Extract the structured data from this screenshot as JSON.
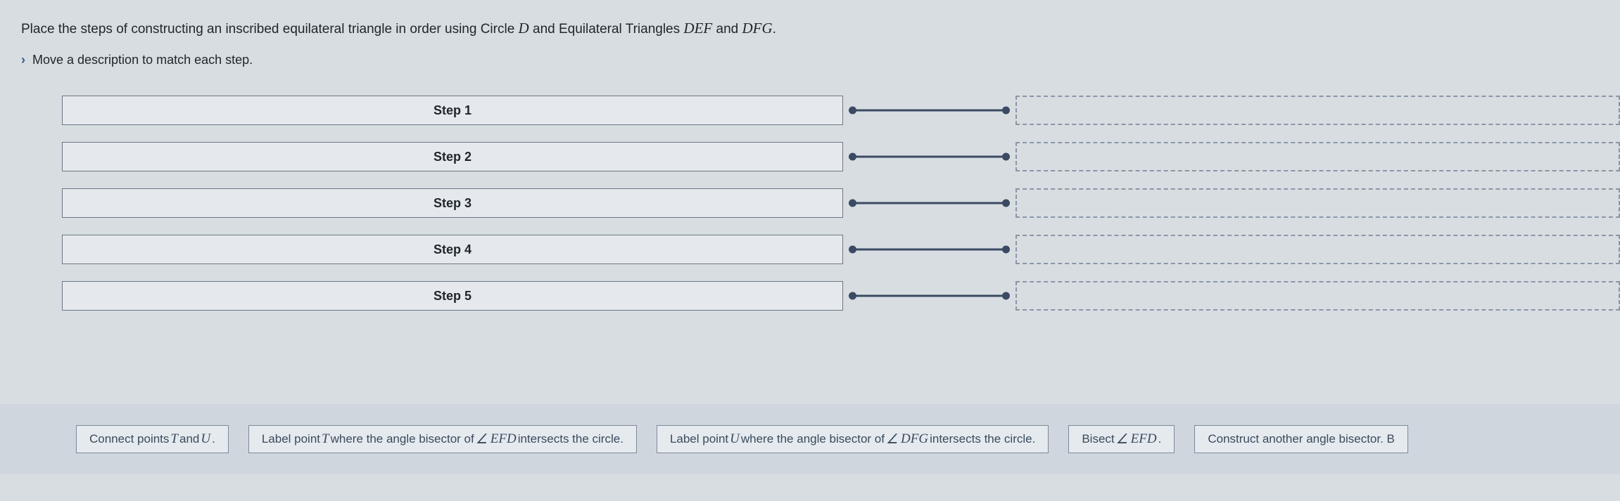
{
  "prompt": {
    "prefix": "Place the steps of constructing an inscribed equilateral triangle in order using Circle ",
    "var1": "D",
    "mid1": " and Equilateral Triangles ",
    "var2": "DEF",
    "mid2": " and ",
    "var3": "DFG",
    "suffix": "."
  },
  "instruction": "Move a description to match each step.",
  "steps": [
    {
      "label": "Step 1"
    },
    {
      "label": "Step 2"
    },
    {
      "label": "Step 3"
    },
    {
      "label": "Step 4"
    },
    {
      "label": "Step 5"
    }
  ],
  "chips": {
    "c1": {
      "t1": "Connect points ",
      "v1": "T",
      "t2": " and ",
      "v2": "U",
      "t3": "."
    },
    "c2": {
      "t1": "Label point ",
      "v1": "T",
      "t2": " where the angle bisector of ",
      "ang": "∠",
      "v2": "EFD",
      "t3": " intersects the circle."
    },
    "c3": {
      "t1": "Label point ",
      "v1": "U",
      "t2": " where the angle bisector of ",
      "ang": "∠",
      "v2": "DFG",
      "t3": " intersects the circle."
    },
    "c4": {
      "t1": "Bisect ",
      "ang": "∠",
      "v1": "EFD",
      "t2": "."
    },
    "c5": {
      "t1": "Construct another angle bisector. B"
    }
  },
  "colors": {
    "page_bg": "#d8dde2",
    "box_border": "#6a7685",
    "box_bg": "#e5e9ed",
    "connector": "#3a4a63",
    "dash_border": "#8a97a8",
    "chipbar_bg": "#cfd6dd"
  }
}
